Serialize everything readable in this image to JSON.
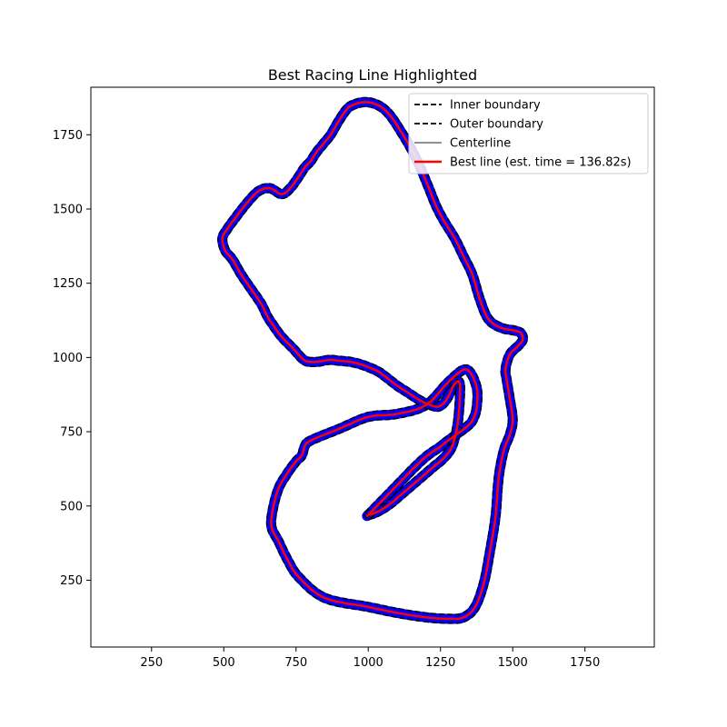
{
  "chart_data": {
    "type": "line",
    "title": "Best Racing Line Highlighted",
    "xlabel": "",
    "ylabel": "",
    "xlim": [
      40,
      1990
    ],
    "ylim": [
      25,
      1910
    ],
    "xticks": [
      250,
      500,
      750,
      1000,
      1250,
      1500,
      1750
    ],
    "yticks": [
      250,
      500,
      750,
      1000,
      1250,
      1500,
      1750
    ],
    "grid": false,
    "legend_position": "upper right",
    "track_x": [
      1000,
      1050,
      1110,
      1160,
      1205,
      1250,
      1262,
      1290,
      1318,
      1345,
      1362,
      1375,
      1375,
      1340,
      1280,
      1200,
      1100,
      1000,
      900,
      800,
      780,
      770,
      750,
      720,
      690,
      670,
      665,
      690,
      720,
      760,
      850,
      1000,
      1100,
      1200,
      1280,
      1330,
      1370,
      1400,
      1420,
      1440,
      1448,
      1455,
      1470,
      1490,
      1500,
      1490,
      1480,
      1475,
      1490,
      1520,
      1535,
      1530,
      1510,
      1460,
      1415,
      1385,
      1360,
      1330,
      1300,
      1262,
      1235,
      1210,
      1180,
      1150,
      1120,
      1080,
      1050,
      1020,
      990,
      960,
      930,
      900,
      870,
      845,
      820,
      800,
      780,
      760,
      730,
      700,
      660,
      620,
      580,
      540,
      510,
      495,
      505,
      530,
      560,
      595,
      630,
      650,
      670,
      700,
      740,
      780,
      820,
      850,
      870,
      890,
      910,
      940,
      980,
      1030,
      1060,
      1100,
      1140,
      1180,
      1215,
      1245,
      1272,
      1295,
      1312,
      1318,
      1310,
      1290,
      1260,
      1230,
      1200,
      1170,
      1140,
      1110,
      1080,
      1050,
      1020,
      1000
    ],
    "track_y": [
      470,
      520,
      580,
      630,
      670,
      700,
      710,
      730,
      750,
      770,
      790,
      830,
      900,
      960,
      920,
      840,
      810,
      800,
      760,
      720,
      700,
      670,
      650,
      610,
      560,
      490,
      430,
      380,
      320,
      260,
      190,
      160,
      140,
      125,
      120,
      125,
      160,
      240,
      340,
      460,
      560,
      620,
      690,
      740,
      790,
      860,
      920,
      960,
      1010,
      1040,
      1060,
      1080,
      1090,
      1100,
      1130,
      1200,
      1280,
      1340,
      1400,
      1460,
      1510,
      1570,
      1640,
      1700,
      1750,
      1810,
      1840,
      1855,
      1860,
      1855,
      1840,
      1800,
      1750,
      1720,
      1690,
      1660,
      1640,
      1610,
      1570,
      1550,
      1570,
      1560,
      1520,
      1470,
      1430,
      1400,
      1360,
      1330,
      1280,
      1230,
      1180,
      1140,
      1110,
      1070,
      1030,
      990,
      985,
      990,
      992,
      990,
      988,
      985,
      975,
      955,
      935,
      905,
      880,
      855,
      840,
      835,
      860,
      905,
      920,
      890,
      780,
      700,
      660,
      635,
      610,
      585,
      560,
      535,
      510,
      490,
      475,
      470
    ],
    "series": [
      {
        "name": "Inner boundary",
        "color": "#000000",
        "style": "dashed",
        "offset": 15
      },
      {
        "name": "Outer boundary",
        "color": "#000000",
        "style": "dashed",
        "offset": -15
      },
      {
        "name": "Centerline",
        "color": "#808080",
        "style": "solid",
        "offset": 0
      },
      {
        "name": "Best line (est. time = 136.82s)",
        "color": "#ff0000",
        "style": "solid",
        "offset": 0
      }
    ],
    "track_fill_color": "#0000ff"
  }
}
